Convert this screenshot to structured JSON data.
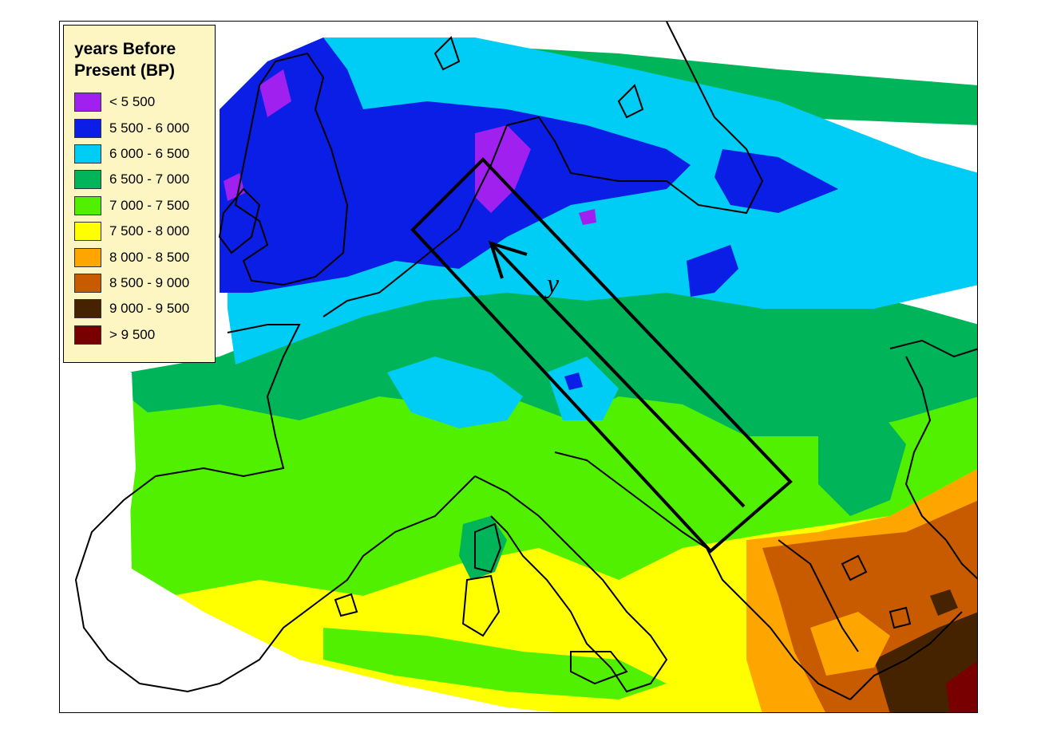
{
  "legend": {
    "title_line1": "years Before",
    "title_line2": "Present (BP)",
    "items": [
      {
        "label": "< 5 500",
        "color": "#a020f0"
      },
      {
        "label": "5 500 - 6 000",
        "color": "#0a1ee6"
      },
      {
        "label": "6 000 - 6 500",
        "color": "#00cdf5"
      },
      {
        "label": "6 500 - 7 000",
        "color": "#00b45a"
      },
      {
        "label": "7 000 - 7 500",
        "color": "#50f000"
      },
      {
        "label": "7 500 - 8 000",
        "color": "#ffff00"
      },
      {
        "label": "8 000 - 8 500",
        "color": "#ffa500"
      },
      {
        "label": "8 500 - 9 000",
        "color": "#c85a00"
      },
      {
        "label": "9 000 - 9 500",
        "color": "#462300"
      },
      {
        "label": "> 9 500",
        "color": "#780000"
      }
    ]
  },
  "annotation": {
    "axis_label": "y"
  }
}
